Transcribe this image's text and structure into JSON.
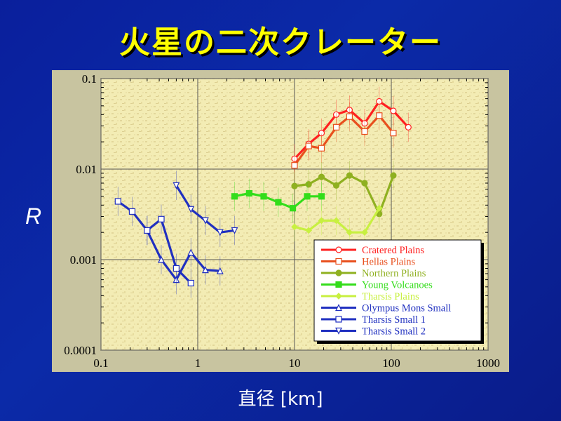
{
  "slide": {
    "title": "火星の二次クレーター",
    "y_variable": "R",
    "x_axis_label": "直径 [km]"
  },
  "chart_data": {
    "type": "line",
    "title": "",
    "xlabel": "直径 [km]",
    "ylabel": "R",
    "x_scale": "log",
    "y_scale": "log",
    "xlim": [
      0.1,
      1000
    ],
    "ylim": [
      0.0001,
      0.1
    ],
    "x_ticks": [
      "0.1",
      "1",
      "10",
      "100",
      "1000"
    ],
    "y_ticks": [
      "0.0001",
      "0.001",
      "0.01",
      "0.1"
    ],
    "grid": true,
    "legend_position": "bottom-right",
    "series": [
      {
        "name": "Cratered Plains",
        "color": "#ff2020",
        "marker": "circle",
        "x": [
          10,
          14,
          19,
          27,
          37,
          53,
          75,
          105,
          150
        ],
        "y": [
          0.013,
          0.019,
          0.025,
          0.04,
          0.045,
          0.032,
          0.056,
          0.044,
          0.029
        ]
      },
      {
        "name": "Hellas Plains",
        "color": "#e8501e",
        "marker": "square",
        "x": [
          10,
          14,
          19,
          27,
          37,
          53,
          75,
          105
        ],
        "y": [
          0.011,
          0.018,
          0.017,
          0.029,
          0.038,
          0.026,
          0.039,
          0.025
        ]
      },
      {
        "name": "Northern Plains",
        "color": "#8fb020",
        "marker": "circle",
        "x": [
          10,
          14,
          19,
          27,
          37,
          53,
          75,
          105
        ],
        "y": [
          0.0065,
          0.0068,
          0.0082,
          0.0066,
          0.0085,
          0.007,
          0.0032,
          0.0085
        ]
      },
      {
        "name": "Young Volcanoes",
        "color": "#33dd1a",
        "marker": "square",
        "x": [
          2.4,
          3.4,
          4.8,
          6.8,
          9.6,
          13.5,
          19
        ],
        "y": [
          0.005,
          0.0054,
          0.005,
          0.0043,
          0.0037,
          0.005,
          0.005
        ]
      },
      {
        "name": "Tharsis Plains",
        "color": "#c8f040",
        "marker": "diamond",
        "x": [
          10,
          14,
          19,
          27,
          37,
          53,
          75
        ],
        "y": [
          0.0023,
          0.0021,
          0.0027,
          0.0027,
          0.002,
          0.002,
          0.0037
        ]
      },
      {
        "name": "Olympus Mons Small",
        "color": "#2030c0",
        "marker": "triangle-up",
        "x": [
          0.3,
          0.42,
          0.6,
          0.85,
          1.2,
          1.7
        ],
        "y": [
          0.0021,
          0.001,
          0.0006,
          0.0012,
          0.00077,
          0.00075
        ]
      },
      {
        "name": "Tharsis Small 1",
        "color": "#2030c0",
        "marker": "square",
        "x": [
          0.15,
          0.21,
          0.3,
          0.42,
          0.6,
          0.85
        ],
        "y": [
          0.0044,
          0.0034,
          0.0021,
          0.0028,
          0.0008,
          0.00055
        ]
      },
      {
        "name": "Tharsis Small 2",
        "color": "#2030c0",
        "marker": "triangle-down",
        "x": [
          0.6,
          0.85,
          1.2,
          1.7,
          2.4
        ],
        "y": [
          0.0066,
          0.0036,
          0.0027,
          0.002,
          0.0021
        ]
      }
    ]
  }
}
